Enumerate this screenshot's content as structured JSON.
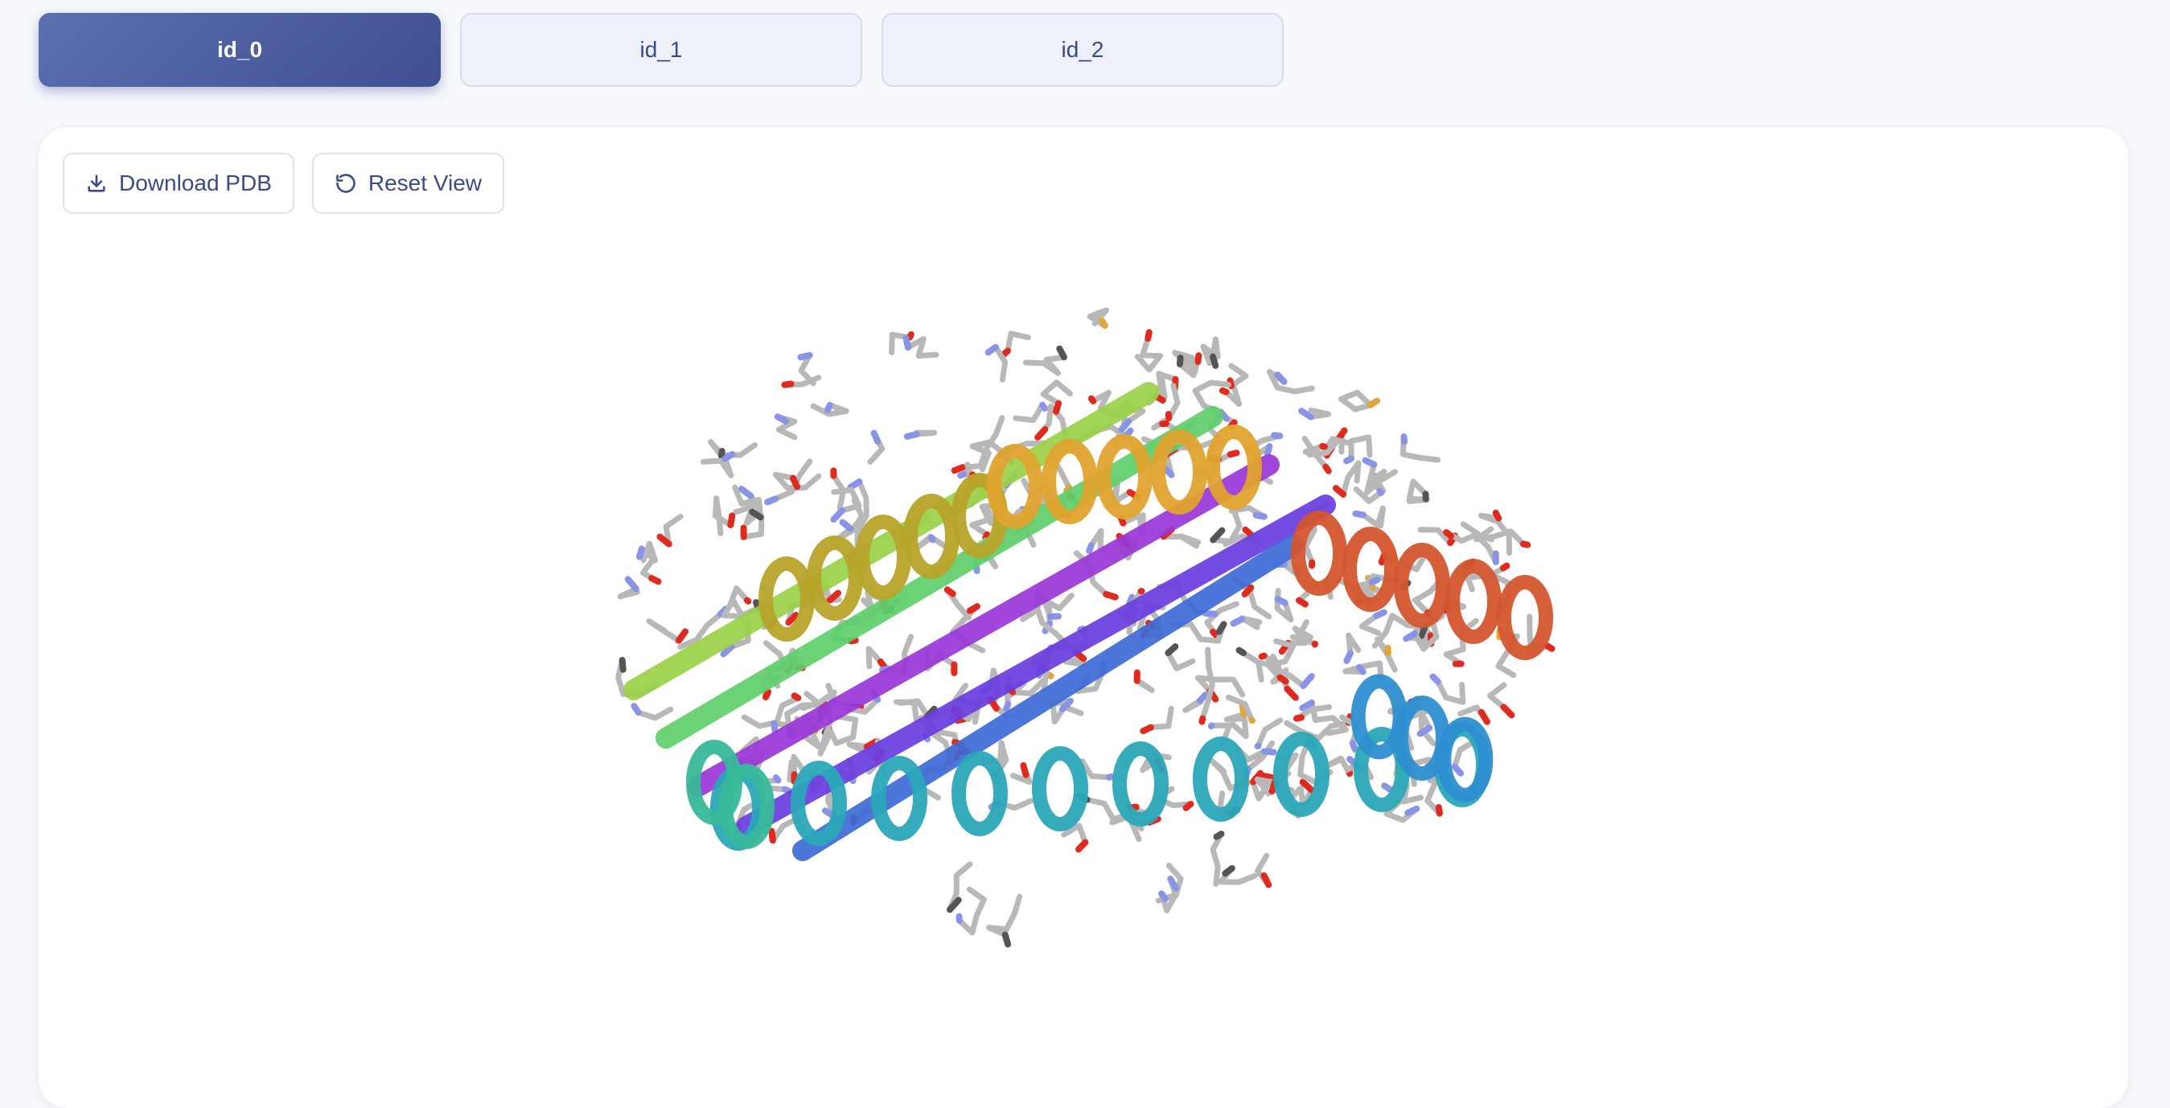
{
  "tabs": [
    {
      "label": "id_0",
      "active": true
    },
    {
      "label": "id_1",
      "active": false
    },
    {
      "label": "id_2",
      "active": false
    }
  ],
  "toolbar": {
    "download_label": "Download PDB",
    "reset_label": "Reset View",
    "download_icon": "download-icon",
    "reset_icon": "rotate-ccw-icon"
  },
  "viewer": {
    "style": "cartoon-with-sticks",
    "chain_colors": [
      "#9b36d8",
      "#6a3de0",
      "#3d6bd6",
      "#2e8fd0",
      "#2aa6b8",
      "#38b89a",
      "#5fd06a",
      "#9bd148",
      "#b8a32a",
      "#e0a32e",
      "#e07a2e",
      "#d4552e"
    ],
    "atom_colors": {
      "carbon": "#b8b8b8",
      "oxygen": "#e02a1e",
      "nitrogen": "#8a94e6",
      "sulfur": "#e0a63a"
    }
  }
}
